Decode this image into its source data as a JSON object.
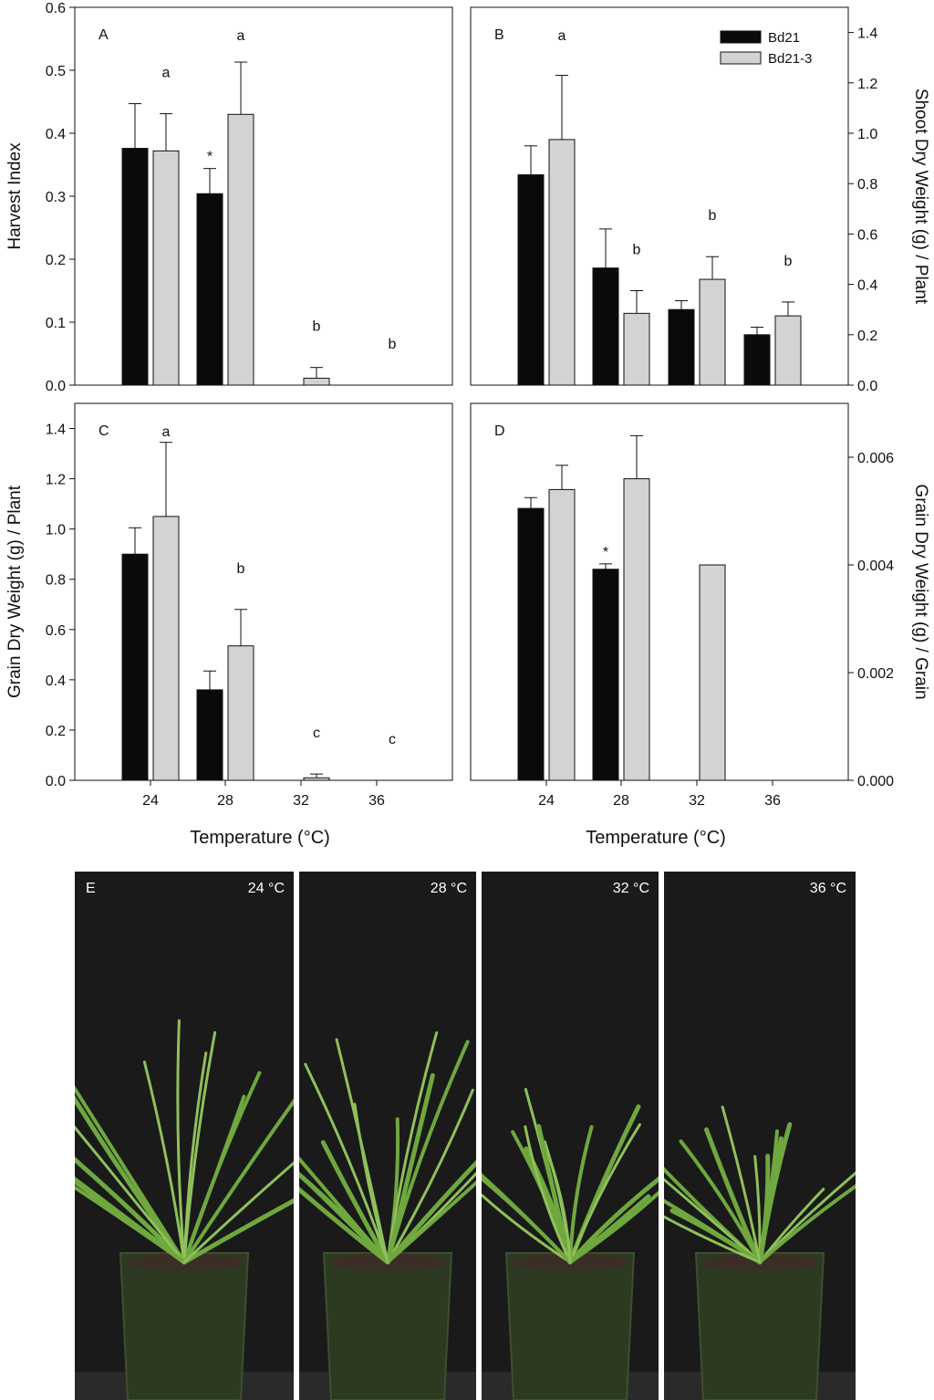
{
  "chart_data": [
    {
      "panel": "A",
      "type": "bar",
      "categories": [
        "24",
        "28",
        "32",
        "36"
      ],
      "series": [
        {
          "name": "Bd21",
          "values": [
            0.376,
            0.304,
            0.0,
            0.0
          ],
          "errors": [
            0.071,
            0.04,
            0.0,
            0.0
          ],
          "color": "#0a0a0a"
        },
        {
          "name": "Bd21-3",
          "values": [
            0.372,
            0.43,
            0.011,
            0.0
          ],
          "errors": [
            0.059,
            0.083,
            0.017,
            0.0
          ],
          "color": "#d3d3d3"
        }
      ],
      "letters": [
        "a",
        "a",
        "b",
        "b"
      ],
      "stars": [
        {
          "category": 1,
          "series": 0,
          "text": "*"
        }
      ],
      "ylabel": "Harvest Index",
      "yaxis_side": "left",
      "ylim": [
        0,
        0.6
      ],
      "yticks": [
        "0.0",
        "0.1",
        "0.2",
        "0.3",
        "0.4",
        "0.5",
        "0.6"
      ],
      "grid": false
    },
    {
      "panel": "B",
      "type": "bar",
      "categories": [
        "24",
        "28",
        "32",
        "36"
      ],
      "series": [
        {
          "name": "Bd21",
          "values": [
            0.835,
            0.465,
            0.3,
            0.2
          ],
          "errors": [
            0.115,
            0.155,
            0.035,
            0.03
          ],
          "color": "#0a0a0a"
        },
        {
          "name": "Bd21-3",
          "values": [
            0.975,
            0.285,
            0.42,
            0.275
          ],
          "errors": [
            0.255,
            0.09,
            0.09,
            0.055
          ],
          "color": "#d3d3d3"
        }
      ],
      "letters": [
        "a",
        "b",
        "b",
        "b"
      ],
      "stars": [],
      "ylabel": "Shoot Dry Weight (g) / Plant",
      "yaxis_side": "right",
      "ylim": [
        0,
        1.5
      ],
      "yticks": [
        "0.0",
        "0.2",
        "0.4",
        "0.6",
        "0.8",
        "1.0",
        "1.2",
        "1.4"
      ],
      "legend": {
        "placement": "top-right",
        "entries": [
          "Bd21",
          "Bd21-3"
        ]
      },
      "grid": false
    },
    {
      "panel": "C",
      "type": "bar",
      "categories": [
        "24",
        "28",
        "32",
        "36"
      ],
      "series": [
        {
          "name": "Bd21",
          "values": [
            0.9,
            0.36,
            0.0,
            0.0
          ],
          "errors": [
            0.105,
            0.075,
            0.0,
            0.0
          ],
          "color": "#0a0a0a"
        },
        {
          "name": "Bd21-3",
          "values": [
            1.05,
            0.535,
            0.01,
            0.0
          ],
          "errors": [
            0.295,
            0.145,
            0.015,
            0.0
          ],
          "color": "#d3d3d3"
        }
      ],
      "letters": [
        "a",
        "b",
        "c",
        "c"
      ],
      "stars": [],
      "ylabel": "Grain Dry Weight (g) / Plant",
      "yaxis_side": "left",
      "ylim": [
        0,
        1.5
      ],
      "yticks": [
        "0.0",
        "0.2",
        "0.4",
        "0.6",
        "0.8",
        "1.0",
        "1.2",
        "1.4"
      ],
      "xlabel": "Temperature (°C)",
      "grid": false
    },
    {
      "panel": "D",
      "type": "bar",
      "categories": [
        "24",
        "28",
        "32",
        "36"
      ],
      "series": [
        {
          "name": "Bd21",
          "values": [
            0.00505,
            0.00392,
            0.0,
            0.0
          ],
          "errors": [
            0.0002,
            0.0001,
            0.0,
            0.0
          ],
          "color": "#0a0a0a"
        },
        {
          "name": "Bd21-3",
          "values": [
            0.0054,
            0.0056,
            0.004,
            0.0
          ],
          "errors": [
            0.00045,
            0.0008,
            0.0,
            0.0
          ],
          "color": "#d3d3d3"
        }
      ],
      "letters": [],
      "stars": [
        {
          "category": 1,
          "series": 0,
          "text": "*"
        }
      ],
      "ylabel": "Grain Dry Weight (g) / Grain",
      "yaxis_side": "right",
      "ylim": [
        0,
        0.007
      ],
      "yticks": [
        "0.000",
        "0.002",
        "0.004",
        "0.006"
      ],
      "xlabel": "Temperature (°C)",
      "grid": false
    }
  ],
  "photos": {
    "letter": "E",
    "panels": [
      {
        "label": "24 °C"
      },
      {
        "label": "28 °C"
      },
      {
        "label": "32 °C"
      },
      {
        "label": "36 °C"
      }
    ]
  }
}
